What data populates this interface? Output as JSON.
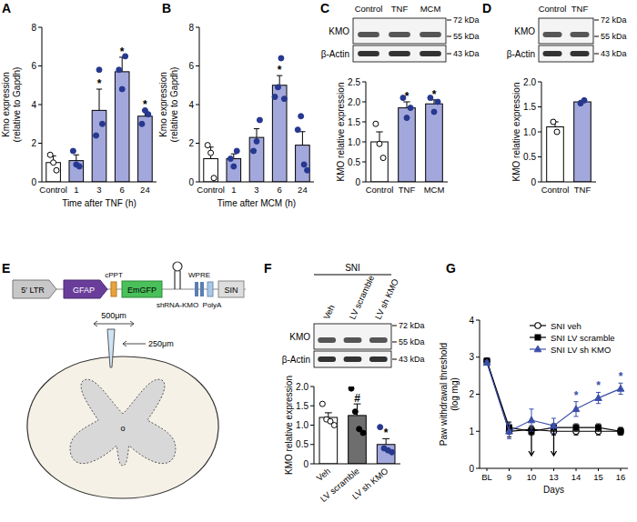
{
  "chart_data": [
    {
      "type": "bar",
      "panel": "A",
      "y_label": [
        "Kmo expression",
        "(relative to Gapdh)"
      ],
      "x_label": "Time after TNF (h)",
      "categories": [
        "Control",
        "1",
        "3",
        "6",
        "24"
      ],
      "values": [
        1.0,
        1.1,
        3.7,
        5.7,
        3.4
      ],
      "errors": [
        0.35,
        0.3,
        1.1,
        0.75,
        0.3
      ],
      "points": [
        [
          1.4,
          1.0,
          0.6
        ],
        [
          1.6,
          0.9,
          0.8
        ],
        [
          2.4,
          5.8,
          3.0
        ],
        [
          5.8,
          4.8,
          6.5
        ],
        [
          3.0,
          3.7,
          3.5
        ]
      ],
      "significance": [
        null,
        null,
        "*",
        "*",
        "*"
      ],
      "colors": [
        "#ffffff",
        "#a3a8dc",
        "#a3a8dc",
        "#a3a8dc",
        "#a3a8dc"
      ],
      "ylim": [
        0,
        8
      ],
      "yticks": [
        0,
        2,
        4,
        6,
        8
      ]
    },
    {
      "type": "bar",
      "panel": "B",
      "y_label": [
        "Kmo expression",
        "(relative to Gapdh)"
      ],
      "x_label": "Time after MCM (h)",
      "categories": [
        "Control",
        "1",
        "3",
        "6",
        "24"
      ],
      "values": [
        1.2,
        1.2,
        2.3,
        5.0,
        1.9
      ],
      "errors": [
        0.6,
        0.25,
        0.45,
        0.5,
        0.7
      ],
      "points": [
        [
          1.9,
          1.5,
          0.2
        ],
        [
          1.2,
          0.8,
          1.6
        ],
        [
          1.6,
          2.1,
          3.2
        ],
        [
          4.4,
          4.9,
          6.4,
          4.3
        ],
        [
          2.7,
          3.4,
          0.9,
          0.6
        ]
      ],
      "significance": [
        null,
        null,
        null,
        "*",
        null
      ],
      "colors": [
        "#ffffff",
        "#a3a8dc",
        "#a3a8dc",
        "#a3a8dc",
        "#a3a8dc"
      ],
      "ylim": [
        0,
        8
      ],
      "yticks": [
        0,
        2,
        4,
        6,
        8
      ]
    },
    {
      "type": "bar",
      "panel": "C",
      "y_label": "KMO relative expression",
      "blot": {
        "lanes": [
          "Control",
          "TNF",
          "MCM"
        ],
        "bands": [
          "KMO",
          "β-Actin"
        ],
        "sizes": [
          "72 kDa",
          "55 kDa",
          "43 kDa"
        ]
      },
      "categories": [
        "Control",
        "TNF",
        "MCM"
      ],
      "values": [
        1.0,
        1.85,
        1.95
      ],
      "errors": [
        0.25,
        0.15,
        0.1
      ],
      "points": [
        [
          1.45,
          0.95,
          0.6
        ],
        [
          2.1,
          1.6,
          1.85
        ],
        [
          2.1,
          1.75,
          2.0
        ]
      ],
      "significance": [
        null,
        "*",
        "*"
      ],
      "colors": [
        "#ffffff",
        "#a3a8dc",
        "#a3a8dc"
      ],
      "ylim": [
        0,
        2.5
      ],
      "yticks": [
        0,
        0.5,
        {
          "value": 1,
          "label": "1.0"
        },
        1.5,
        {
          "value": 2,
          "label": "2.0"
        },
        2.5
      ]
    },
    {
      "type": "bar",
      "panel": "D",
      "y_label": "KMO relative expression",
      "blot": {
        "lanes": [
          "Control",
          "TNF"
        ],
        "bands": [
          "KMO",
          "β-Actin"
        ],
        "sizes": [
          "72 kDa",
          "55 kDa",
          "43 kDa"
        ]
      },
      "categories": [
        "Control",
        "TNF"
      ],
      "values": [
        1.1,
        1.6
      ],
      "errors": [
        0.1,
        0.03
      ],
      "points": [
        [
          1.2,
          1.0
        ],
        [
          1.57,
          1.63
        ]
      ],
      "colors": [
        "#ffffff",
        "#a3a8dc"
      ],
      "ylim": [
        0,
        2
      ],
      "yticks": [
        0,
        0.5,
        {
          "value": 1,
          "label": "1.0"
        },
        1.5,
        {
          "value": 2,
          "label": "2.0"
        }
      ]
    },
    {
      "type": "bar",
      "panel": "F",
      "y_label": "KMO relative expression",
      "blot": {
        "title": "SNI",
        "lanes": [
          "Veh",
          "LV scramble",
          "LV sh KMO"
        ],
        "bands": [
          "KMO",
          "β-Actin"
        ],
        "sizes": [
          "72 kDa",
          "55 kDa",
          "43 kDa"
        ]
      },
      "categories": [
        "Veh",
        "LV scramble",
        "LV sh KMO"
      ],
      "values": [
        1.2,
        1.25,
        0.5
      ],
      "errors": [
        0.12,
        0.3,
        0.15
      ],
      "points": [
        [
          1.55,
          1.15,
          1.1,
          1.0
        ],
        [
          1.95,
          1.35,
          0.9,
          0.8
        ],
        [
          0.95,
          0.4,
          0.35,
          0.3
        ]
      ],
      "significance": [
        null,
        "#",
        "*"
      ],
      "colors": [
        "#ffffff",
        "#6e6e6e",
        "#a3a8dc"
      ],
      "ylim": [
        0,
        2
      ],
      "yticks": [
        0,
        0.5,
        {
          "value": 1,
          "label": "1.0"
        },
        1.5,
        {
          "value": 2,
          "label": "2.0"
        }
      ]
    },
    {
      "type": "line",
      "panel": "G",
      "y_label": [
        "Paw withdrawal threshold",
        "(log mg)"
      ],
      "x_label": "Days",
      "categories": [
        "BL",
        "9",
        "10",
        "13",
        "14",
        "15",
        "16"
      ],
      "series": [
        {
          "name": "SNI veh",
          "color": "#000000",
          "marker": "circle",
          "values": [
            2.9,
            1.0,
            1.05,
            1.0,
            1.0,
            1.0,
            1.0
          ],
          "errors": [
            0.05,
            0.15,
            0.1,
            0.1,
            0.1,
            0.1,
            0.1
          ]
        },
        {
          "name": "SNI LV scramble",
          "color": "#000000",
          "marker": "square",
          "values": [
            2.9,
            1.1,
            1.0,
            1.1,
            1.1,
            1.1,
            1.0
          ],
          "errors": [
            0.05,
            0.15,
            0.1,
            0.1,
            0.1,
            0.1,
            0.1
          ]
        },
        {
          "name": "SNI LV sh KMO",
          "color": "#3b4fa8",
          "marker": "triangle",
          "values": [
            2.85,
            1.0,
            1.3,
            1.15,
            1.6,
            1.9,
            2.15
          ],
          "errors": [
            0.05,
            0.2,
            0.3,
            0.2,
            0.2,
            0.15,
            0.15
          ],
          "significance": [
            null,
            null,
            null,
            null,
            "*",
            "*",
            "*"
          ]
        }
      ],
      "arrows": [
        "10",
        "13"
      ],
      "legend": "top-right",
      "ylim": [
        0,
        4
      ],
      "yticks": [
        0,
        1,
        2,
        3,
        4
      ]
    }
  ],
  "panel_e": {
    "panel": "E",
    "construct": [
      "5′ LTR",
      "GFAP",
      "cPPT",
      "EmGFP",
      "shRNA-KMO",
      "WPRE",
      "PolyA",
      "SIN"
    ],
    "dimensions": [
      "500μm",
      "250μm"
    ]
  }
}
